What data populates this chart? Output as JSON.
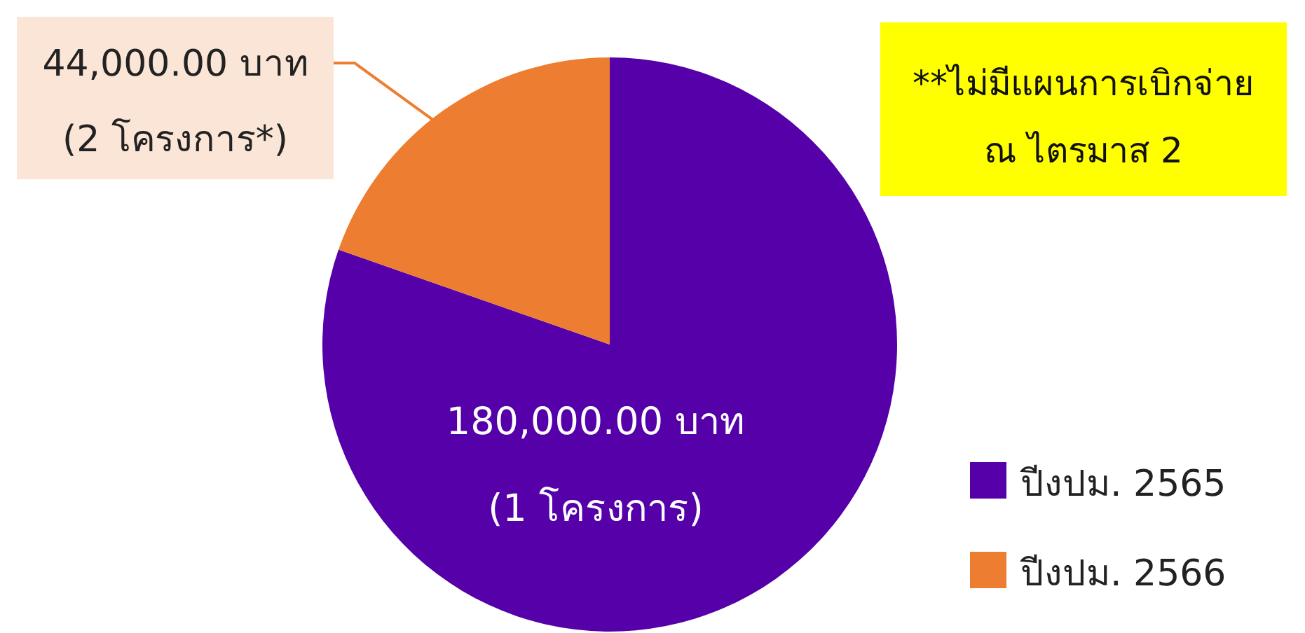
{
  "chart_data": {
    "type": "pie",
    "categories": [
      "ปีงปม. 2565",
      "ปีงปม. 2566"
    ],
    "values": [
      180000,
      44000
    ],
    "colors": [
      "#5500a8",
      "#ed7d31"
    ],
    "value_labels": [
      "180,000.00  บาท\n(1 โครงการ)",
      "44,000.00 บาท\n(2 โครงการ*)"
    ],
    "annotations": [
      "**ไม่มีแผนการเบิกจ่าย\nณ ไตรมาส 2"
    ],
    "legend": "bottom right"
  }
}
